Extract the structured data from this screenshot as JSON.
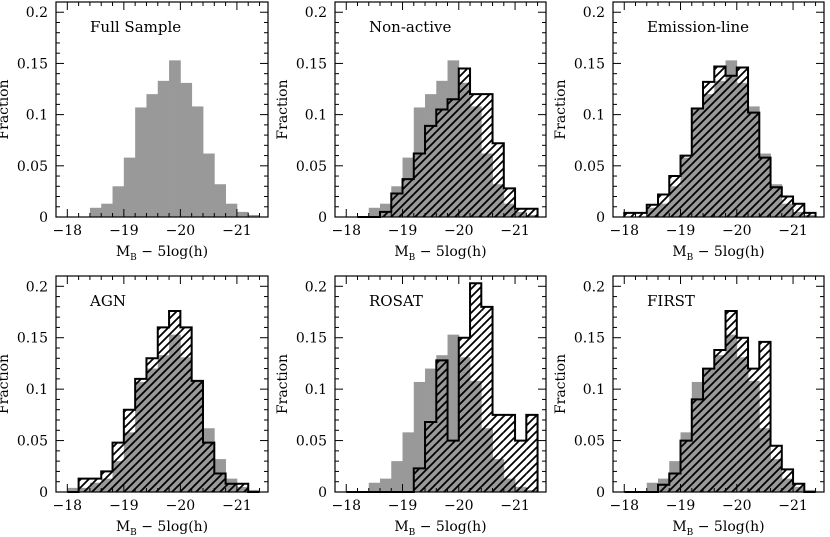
{
  "figure": {
    "x_axis_title_main": "M",
    "x_axis_title_sub": "B",
    "x_axis_title_rest": " − 5log(h)",
    "y_axis_title": "Fraction",
    "x_tick_labels": [
      "−18",
      "−19",
      "−20",
      "−21"
    ],
    "y_tick_labels": [
      "0",
      "0.05",
      "0.1",
      "0.15",
      "0.2"
    ],
    "filled_color": "#999999",
    "hatch_color": "#000000"
  },
  "chart_data": [
    {
      "type": "bar",
      "title": "Full Sample",
      "x_bin_edges": [
        -18.2,
        -18.4,
        -18.6,
        -18.8,
        -19.0,
        -19.2,
        -19.4,
        -19.6,
        -19.8,
        -20.0,
        -20.2,
        -20.4,
        -20.6,
        -20.8,
        -21.0,
        -21.2,
        -21.4
      ],
      "xlim": [
        -17.8,
        -21.55
      ],
      "ylim": [
        0,
        0.21
      ],
      "series": [
        {
          "style": "filled",
          "values": [
            0,
            0.009,
            0.013,
            0.03,
            0.058,
            0.107,
            0.12,
            0.133,
            0.153,
            0.131,
            0.108,
            0.062,
            0.032,
            0.013,
            0.005,
            0.002
          ]
        }
      ]
    },
    {
      "type": "bar",
      "title": "Non-active",
      "x_bin_edges": [
        -18.2,
        -18.4,
        -18.6,
        -18.8,
        -19.0,
        -19.2,
        -19.4,
        -19.6,
        -19.8,
        -20.0,
        -20.2,
        -20.4,
        -20.6,
        -20.8,
        -21.0,
        -21.2,
        -21.4
      ],
      "xlim": [
        -17.8,
        -21.55
      ],
      "ylim": [
        0,
        0.21
      ],
      "series": [
        {
          "style": "filled",
          "values": [
            0,
            0.009,
            0.013,
            0.03,
            0.058,
            0.107,
            0.12,
            0.133,
            0.153,
            0.131,
            0.108,
            0.062,
            0.032,
            0.013,
            0.005,
            0.002
          ]
        },
        {
          "style": "hatched",
          "values": [
            0,
            0,
            0.005,
            0.023,
            0.037,
            0.062,
            0.089,
            0.105,
            0.115,
            0.145,
            0.12,
            0.12,
            0.072,
            0.028,
            0.008,
            0.008
          ]
        }
      ]
    },
    {
      "type": "bar",
      "title": "Emission-line",
      "x_bin_edges": [
        -18.0,
        -18.2,
        -18.4,
        -18.6,
        -18.8,
        -19.0,
        -19.2,
        -19.4,
        -19.6,
        -19.8,
        -20.0,
        -20.2,
        -20.4,
        -20.6,
        -20.8,
        -21.0,
        -21.2,
        -21.4
      ],
      "xlim": [
        -17.8,
        -21.55
      ],
      "ylim": [
        0,
        0.21
      ],
      "series": [
        {
          "style": "filled",
          "values": [
            0,
            0,
            0.009,
            0.013,
            0.03,
            0.058,
            0.107,
            0.12,
            0.133,
            0.153,
            0.131,
            0.108,
            0.062,
            0.032,
            0.013,
            0.005,
            0.002
          ]
        },
        {
          "style": "hatched",
          "values": [
            0.004,
            0.004,
            0.012,
            0.022,
            0.04,
            0.06,
            0.106,
            0.132,
            0.147,
            0.138,
            0.146,
            0.102,
            0.058,
            0.029,
            0.02,
            0.013,
            0.004
          ]
        }
      ]
    },
    {
      "type": "bar",
      "title": "AGN",
      "x_bin_edges": [
        -18.0,
        -18.2,
        -18.4,
        -18.6,
        -18.8,
        -19.0,
        -19.2,
        -19.4,
        -19.6,
        -19.8,
        -20.0,
        -20.2,
        -20.4,
        -20.6,
        -20.8,
        -21.0,
        -21.2,
        -21.4
      ],
      "xlim": [
        -17.8,
        -21.55
      ],
      "ylim": [
        0,
        0.21
      ],
      "series": [
        {
          "style": "filled",
          "values": [
            0.004,
            0.004,
            0.009,
            0.013,
            0.03,
            0.058,
            0.107,
            0.12,
            0.133,
            0.153,
            0.131,
            0.108,
            0.062,
            0.032,
            0.013,
            0.005,
            0.002
          ]
        },
        {
          "style": "hatched",
          "values": [
            0,
            0.013,
            0.013,
            0.02,
            0.048,
            0.08,
            0.11,
            0.13,
            0.16,
            0.176,
            0.16,
            0.108,
            0.048,
            0.018,
            0.008,
            0.008,
            0
          ]
        }
      ]
    },
    {
      "type": "bar",
      "title": "ROSAT",
      "x_bin_edges": [
        -18.0,
        -18.2,
        -18.4,
        -18.6,
        -18.8,
        -19.0,
        -19.2,
        -19.4,
        -19.6,
        -19.8,
        -20.0,
        -20.2,
        -20.4,
        -20.6,
        -20.8,
        -21.0,
        -21.2,
        -21.4
      ],
      "xlim": [
        -17.8,
        -21.55
      ],
      "ylim": [
        0,
        0.21
      ],
      "series": [
        {
          "style": "filled",
          "values": [
            0,
            0,
            0.009,
            0.013,
            0.03,
            0.058,
            0.107,
            0.12,
            0.133,
            0.153,
            0.131,
            0.108,
            0.062,
            0.032,
            0.013,
            0.005,
            0.002
          ]
        },
        {
          "style": "hatched",
          "values": [
            0,
            0,
            0,
            0,
            0,
            0,
            0.023,
            0.068,
            0.128,
            0.05,
            0.15,
            0.203,
            0.18,
            0.075,
            0.075,
            0.05,
            0.075
          ]
        }
      ]
    },
    {
      "type": "bar",
      "title": "FIRST",
      "x_bin_edges": [
        -18.0,
        -18.2,
        -18.4,
        -18.6,
        -18.8,
        -19.0,
        -19.2,
        -19.4,
        -19.6,
        -19.8,
        -20.0,
        -20.2,
        -20.4,
        -20.6,
        -20.8,
        -21.0,
        -21.2,
        -21.4
      ],
      "xlim": [
        -17.8,
        -21.55
      ],
      "ylim": [
        0,
        0.21
      ],
      "series": [
        {
          "style": "filled",
          "values": [
            0,
            0,
            0.009,
            0.013,
            0.03,
            0.058,
            0.107,
            0.12,
            0.133,
            0.153,
            0.131,
            0.108,
            0.062,
            0.032,
            0.013,
            0.005,
            0.002
          ]
        },
        {
          "style": "hatched",
          "values": [
            0,
            0,
            0,
            0.007,
            0.018,
            0.05,
            0.09,
            0.12,
            0.138,
            0.176,
            0.15,
            0.12,
            0.146,
            0.045,
            0.022,
            0.008,
            0
          ]
        }
      ]
    }
  ]
}
